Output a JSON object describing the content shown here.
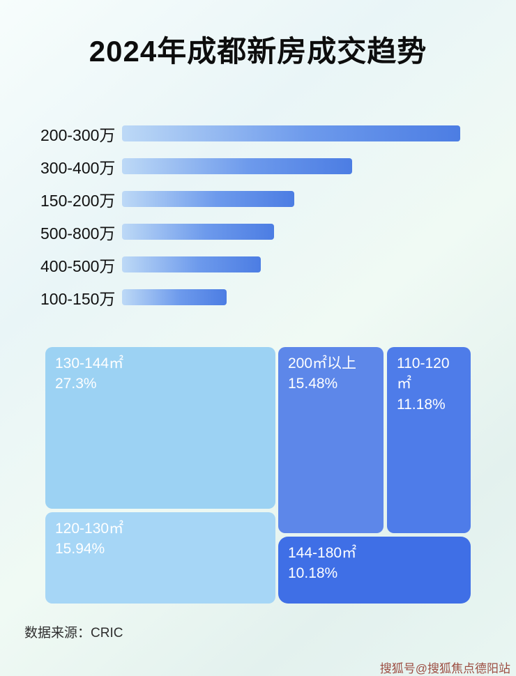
{
  "page": {
    "title": "2024年成都新房成交趋势",
    "source_note": "数据来源：CRIC",
    "watermark": "搜狐号@搜狐焦点德阳站"
  },
  "colors": {
    "bar_gradient_start": "#bdd9f6",
    "bar_gradient_end": "#4c7de3",
    "title_text": "#0d0d0d",
    "block_text": "#ffffff"
  },
  "chart_data": [
    {
      "type": "bar",
      "orientation": "horizontal",
      "title": "2024年成都新房成交趋势",
      "categories": [
        "200-300万",
        "300-400万",
        "150-200万",
        "500-800万",
        "400-500万",
        "100-150万"
      ],
      "values_relative_pct": [
        100,
        68,
        51,
        45,
        41,
        31
      ],
      "xlabel": "",
      "ylabel": "",
      "grid": false,
      "legend": false
    },
    {
      "type": "treemap",
      "blocks": [
        {
          "label": "130-144㎡",
          "value": 27.3,
          "value_display": "27.3%",
          "color": "#9cd2f3"
        },
        {
          "label": "200㎡以上",
          "value": 15.48,
          "value_display": "15.48%",
          "color": "#5d87e9"
        },
        {
          "label": "110-120㎡",
          "value": 11.18,
          "value_display": "11.18%",
          "color": "#4e7ce9"
        },
        {
          "label": "120-130㎡",
          "value": 15.94,
          "value_display": "15.94%",
          "color": "#a6d6f6"
        },
        {
          "label": "144-180㎡",
          "value": 10.18,
          "value_display": "10.18%",
          "color": "#3f6fe6"
        }
      ]
    }
  ]
}
